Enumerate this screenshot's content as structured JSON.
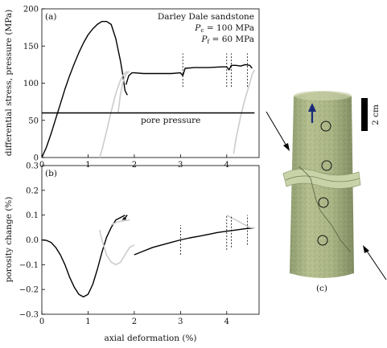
{
  "chart_data": [
    {
      "panel": "(a)",
      "type": "line",
      "ylabel": "differential stress, pressure (MPa)",
      "xlim": [
        0,
        4.7
      ],
      "ylim": [
        0,
        200
      ],
      "y_ticks": [
        "0",
        "50",
        "100",
        "150",
        "200"
      ],
      "x_ticks": [
        "0",
        "1",
        "2",
        "3",
        "4"
      ],
      "legend_lines": [
        "Darley Dale sandstone",
        "Pc = 100 MPa",
        "Pf = 60 MPa"
      ],
      "legend_parts": {
        "title": "Darley Dale sandstone",
        "pc_sym": "P",
        "pc_sub": "c",
        "pc_val": " = 100 MPa",
        "pf_sym": "P",
        "pf_sub": "f",
        "pf_val": " = 60 MPa"
      },
      "annotation": "pore pressure",
      "series": [
        {
          "color": "#000000",
          "x": [
            0.0,
            0.1,
            0.2,
            0.3,
            0.4,
            0.5,
            0.6,
            0.7,
            0.8,
            0.9,
            1.0,
            1.1,
            1.2,
            1.3,
            1.4,
            1.5,
            1.6,
            1.7,
            1.75,
            1.8,
            1.85
          ],
          "y": [
            0,
            14,
            32,
            52,
            72,
            92,
            110,
            126,
            141,
            154,
            165,
            173,
            179,
            183,
            183,
            179,
            160,
            130,
            112,
            90,
            84
          ]
        },
        {
          "color": "#000000",
          "x": [
            1.82,
            1.88,
            1.95,
            2.0,
            2.2,
            2.5,
            2.8,
            3.0,
            3.05,
            3.1,
            3.3,
            3.6,
            3.9,
            4.0,
            4.05,
            4.1,
            4.2,
            4.3,
            4.4,
            4.5,
            4.55
          ],
          "y": [
            98,
            110,
            114,
            114,
            113,
            113,
            113,
            114,
            110,
            120,
            121,
            121,
            122,
            122,
            118,
            124,
            124,
            123,
            125,
            124,
            120
          ]
        },
        {
          "color": "#cccccc",
          "x": [
            1.25,
            1.3,
            1.4,
            1.5,
            1.6,
            1.7,
            1.75,
            1.8,
            1.85
          ],
          "y": [
            0,
            10,
            35,
            62,
            86,
            104,
            110,
            114,
            116
          ]
        },
        {
          "color": "#cccccc",
          "x": [
            1.65,
            1.7,
            1.75,
            1.8,
            1.85,
            1.9
          ],
          "y": [
            60,
            85,
            100,
            110,
            114,
            116
          ]
        },
        {
          "color": "#cccccc",
          "x": [
            4.15,
            4.2,
            4.3,
            4.4,
            4.5,
            4.55,
            4.6
          ],
          "y": [
            5,
            25,
            55,
            80,
            100,
            112,
            118
          ]
        },
        {
          "name": "pore pressure",
          "color": "#000000",
          "x": [
            0.0,
            4.6
          ],
          "y": [
            60,
            60
          ]
        }
      ]
    },
    {
      "panel": "(b)",
      "type": "line",
      "xlabel": "axial deformation (%)",
      "ylabel": "porosity change (%)",
      "xlim": [
        0,
        4.7
      ],
      "ylim": [
        -0.3,
        0.3
      ],
      "y_ticks": [
        "−0.3",
        "−0.2",
        "−0.1",
        "0.0",
        "0.1",
        "0.2",
        "0.3"
      ],
      "x_ticks": [
        "0",
        "1",
        "2",
        "3",
        "4"
      ],
      "series": [
        {
          "color": "#000000",
          "x": [
            0.0,
            0.1,
            0.2,
            0.3,
            0.4,
            0.5,
            0.6,
            0.7,
            0.8,
            0.9,
            1.0,
            1.1,
            1.2,
            1.3,
            1.4,
            1.5,
            1.6,
            1.7,
            1.8
          ],
          "y": [
            0.0,
            -0.002,
            -0.01,
            -0.03,
            -0.06,
            -0.1,
            -0.15,
            -0.19,
            -0.22,
            -0.23,
            -0.22,
            -0.18,
            -0.12,
            -0.05,
            0.01,
            0.05,
            0.08,
            0.09,
            0.1
          ]
        },
        {
          "color": "#000000",
          "x": [
            1.75,
            1.78,
            1.8,
            1.82,
            1.85
          ],
          "y": [
            0.08,
            0.09,
            0.08,
            0.095,
            0.1
          ]
        },
        {
          "color": "#000000",
          "x": [
            2.0,
            2.2,
            2.4,
            2.6,
            2.8,
            3.0,
            3.2,
            3.4,
            3.6,
            3.8,
            4.0,
            4.2,
            4.4,
            4.6
          ],
          "y": [
            -0.06,
            -0.045,
            -0.03,
            -0.02,
            -0.01,
            0.0,
            0.008,
            0.015,
            0.022,
            0.03,
            0.035,
            0.04,
            0.045,
            0.048
          ]
        },
        {
          "color": "#cccccc",
          "x": [
            1.25,
            1.3,
            1.4,
            1.5,
            1.6,
            1.7,
            1.8,
            1.9,
            2.0
          ],
          "y": [
            0.04,
            0.0,
            -0.06,
            -0.09,
            -0.1,
            -0.09,
            -0.06,
            -0.03,
            -0.02
          ]
        },
        {
          "color": "#cccccc",
          "x": [
            1.5,
            1.6,
            1.7,
            1.8,
            1.9
          ],
          "y": [
            0.06,
            0.07,
            0.075,
            0.078,
            0.08
          ]
        },
        {
          "color": "#cccccc",
          "x": [
            4.0,
            4.1,
            4.2,
            4.3,
            4.4,
            4.5,
            4.6
          ],
          "y": [
            0.1,
            0.09,
            0.08,
            0.07,
            0.06,
            0.05,
            0.048
          ]
        }
      ],
      "markers_x": [
        3.0,
        4.0,
        4.1,
        4.45
      ]
    }
  ],
  "photo": {
    "label": "(c)",
    "scale_label": "2 cm"
  }
}
